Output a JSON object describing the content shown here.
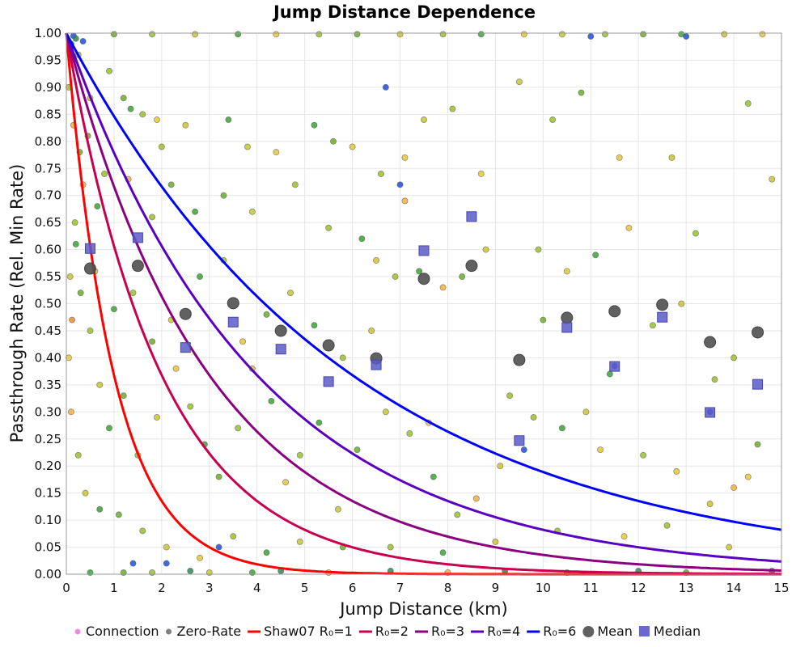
{
  "chart_data": {
    "type": "scatter",
    "title": "Jump Distance Dependence",
    "xlabel": "Jump Distance (km)",
    "ylabel": "Passthrough Rate (Rel. Min Rate)",
    "xlim": [
      0,
      15
    ],
    "ylim": [
      0,
      1
    ],
    "grid": true,
    "x_ticks": [
      "0",
      "1",
      "2",
      "3",
      "4",
      "5",
      "6",
      "7",
      "8",
      "9",
      "10",
      "11",
      "12",
      "13",
      "14",
      "15"
    ],
    "y_ticks": [
      "0.00",
      "0.05",
      "0.10",
      "0.15",
      "0.20",
      "0.25",
      "0.30",
      "0.35",
      "0.40",
      "0.45",
      "0.50",
      "0.55",
      "0.60",
      "0.65",
      "0.70",
      "0.75",
      "0.80",
      "0.85",
      "0.90",
      "0.95",
      "1.00"
    ],
    "legend_position": "bottom",
    "legend": [
      {
        "label": "Connection",
        "kind": "dot",
        "color": "#f08ae0"
      },
      {
        "label": "Zero-Rate",
        "kind": "dot",
        "color": "#808080"
      },
      {
        "label": "Shaw07 R₀=1",
        "kind": "line",
        "color": "#ff0000"
      },
      {
        "label": "R₀=2",
        "kind": "line",
        "color": "#c8004e"
      },
      {
        "label": "R₀=3",
        "kind": "line",
        "color": "#8a0080"
      },
      {
        "label": "R₀=4",
        "kind": "line",
        "color": "#5a00c0"
      },
      {
        "label": "R₀=6",
        "kind": "line",
        "color": "#0000ff"
      },
      {
        "label": "Mean",
        "kind": "circle",
        "color": "#606060"
      },
      {
        "label": "Median",
        "kind": "square",
        "color": "#6a6acd"
      }
    ],
    "curves": [
      {
        "name": "Shaw07 R0=1",
        "formula": "exp(-x/1)",
        "R0": 1,
        "color": "#ff0000"
      },
      {
        "name": "R0=2",
        "formula": "exp(-x/2)",
        "R0": 2,
        "color": "#c8004e"
      },
      {
        "name": "R0=3",
        "formula": "exp(-x/3)",
        "R0": 3,
        "color": "#8a0080"
      },
      {
        "name": "R0=4",
        "formula": "exp(-x/4)",
        "R0": 4,
        "color": "#5a00c0"
      },
      {
        "name": "R0=6",
        "formula": "exp(-x/6)",
        "R0": 6,
        "color": "#0000ff"
      }
    ],
    "mean": {
      "x": [
        0.5,
        1.5,
        2.5,
        3.5,
        4.5,
        5.5,
        6.5,
        7.5,
        8.5,
        9.5,
        10.5,
        11.5,
        12.5,
        13.5,
        14.5
      ],
      "y": [
        0.565,
        0.57,
        0.481,
        0.501,
        0.45,
        0.423,
        0.399,
        0.546,
        0.57,
        0.396,
        0.474,
        0.486,
        0.498,
        0.429,
        0.447
      ]
    },
    "median": {
      "x": [
        0.5,
        1.5,
        2.5,
        3.5,
        4.5,
        5.5,
        6.5,
        7.5,
        8.5,
        9.5,
        10.5,
        11.5,
        12.5,
        13.5,
        14.5
      ],
      "y": [
        0.602,
        0.622,
        0.419,
        0.466,
        0.416,
        0.356,
        0.387,
        0.598,
        0.661,
        0.247,
        0.456,
        0.384,
        0.475,
        0.299,
        0.351
      ]
    },
    "scatter_colors": [
      "#1f4fd8",
      "#2e8b57",
      "#3aa335",
      "#6aab2a",
      "#9bbf2a",
      "#c9c42f",
      "#e8c53a",
      "#f0b13a",
      "#ee8a2e"
    ],
    "scatter_points": [
      [
        0.1,
        0.98,
        0
      ],
      [
        0.15,
        0.995,
        0
      ],
      [
        0.2,
        0.99,
        1
      ],
      [
        0.35,
        0.985,
        0
      ],
      [
        0.25,
        0.96,
        4
      ],
      [
        0.9,
        0.93,
        4
      ],
      [
        1.2,
        0.88,
        3
      ],
      [
        1.35,
        0.86,
        2
      ],
      [
        0.5,
        0.88,
        5
      ],
      [
        1.6,
        0.85,
        4
      ],
      [
        0.45,
        0.81,
        3
      ],
      [
        1.9,
        0.84,
        6
      ],
      [
        2.5,
        0.83,
        5
      ],
      [
        3.4,
        0.84,
        2
      ],
      [
        3.8,
        0.79,
        5
      ],
      [
        2.2,
        0.72,
        3
      ],
      [
        2.0,
        0.79,
        4
      ],
      [
        0.8,
        0.74,
        4
      ],
      [
        1.3,
        0.73,
        7
      ],
      [
        0.65,
        0.68,
        2
      ],
      [
        1.8,
        0.66,
        4
      ],
      [
        2.7,
        0.67,
        2
      ],
      [
        3.3,
        0.7,
        3
      ],
      [
        3.9,
        0.67,
        5
      ],
      [
        4.4,
        0.78,
        6
      ],
      [
        4.8,
        0.72,
        4
      ],
      [
        5.2,
        0.83,
        2
      ],
      [
        5.6,
        0.8,
        3
      ],
      [
        6.0,
        0.79,
        6
      ],
      [
        6.6,
        0.74,
        4
      ],
      [
        7.1,
        0.77,
        6
      ],
      [
        7.5,
        0.84,
        5
      ],
      [
        8.1,
        0.86,
        4
      ],
      [
        8.7,
        0.74,
        6
      ],
      [
        9.5,
        0.91,
        5
      ],
      [
        10.2,
        0.84,
        4
      ],
      [
        10.8,
        0.89,
        3
      ],
      [
        11.6,
        0.77,
        6
      ],
      [
        12.7,
        0.77,
        5
      ],
      [
        13.2,
        0.63,
        4
      ],
      [
        14.3,
        0.87,
        4
      ],
      [
        14.8,
        0.73,
        5
      ],
      [
        6.7,
        0.9,
        0
      ],
      [
        7.0,
        0.72,
        0
      ],
      [
        7.1,
        0.69,
        7
      ],
      [
        5.5,
        0.64,
        4
      ],
      [
        6.2,
        0.62,
        2
      ],
      [
        6.5,
        0.58,
        5
      ],
      [
        6.9,
        0.55,
        4
      ],
      [
        7.4,
        0.56,
        2
      ],
      [
        7.9,
        0.53,
        7
      ],
      [
        8.3,
        0.55,
        3
      ],
      [
        8.8,
        0.6,
        5
      ],
      [
        9.9,
        0.6,
        4
      ],
      [
        10.5,
        0.56,
        6
      ],
      [
        11.1,
        0.59,
        2
      ],
      [
        11.8,
        0.64,
        6
      ],
      [
        12.3,
        0.46,
        4
      ],
      [
        12.9,
        0.5,
        5
      ],
      [
        14.0,
        0.4,
        4
      ],
      [
        13.6,
        0.36,
        4
      ],
      [
        14.5,
        0.24,
        3
      ],
      [
        14.3,
        0.18,
        6
      ],
      [
        14.0,
        0.16,
        7
      ],
      [
        13.5,
        0.13,
        5
      ],
      [
        12.8,
        0.19,
        6
      ],
      [
        12.1,
        0.22,
        4
      ],
      [
        11.2,
        0.23,
        6
      ],
      [
        10.4,
        0.27,
        2
      ],
      [
        9.8,
        0.29,
        4
      ],
      [
        9.1,
        0.2,
        5
      ],
      [
        8.6,
        0.14,
        7
      ],
      [
        8.2,
        0.11,
        4
      ],
      [
        7.7,
        0.18,
        2
      ],
      [
        7.2,
        0.26,
        4
      ],
      [
        6.7,
        0.3,
        5
      ],
      [
        6.1,
        0.23,
        3
      ],
      [
        5.7,
        0.12,
        5
      ],
      [
        5.3,
        0.28,
        2
      ],
      [
        4.9,
        0.22,
        4
      ],
      [
        4.6,
        0.17,
        6
      ],
      [
        4.3,
        0.32,
        2
      ],
      [
        3.9,
        0.38,
        5
      ],
      [
        3.6,
        0.27,
        4
      ],
      [
        3.2,
        0.18,
        3
      ],
      [
        2.9,
        0.24,
        2
      ],
      [
        2.6,
        0.31,
        4
      ],
      [
        2.3,
        0.38,
        6
      ],
      [
        1.9,
        0.29,
        5
      ],
      [
        1.5,
        0.22,
        4
      ],
      [
        1.2,
        0.33,
        3
      ],
      [
        0.9,
        0.27,
        2
      ],
      [
        0.7,
        0.35,
        5
      ],
      [
        0.5,
        0.45,
        4
      ],
      [
        0.3,
        0.52,
        3
      ],
      [
        0.2,
        0.61,
        2
      ],
      [
        0.35,
        0.72,
        6
      ],
      [
        0.15,
        0.83,
        7
      ],
      [
        0.05,
        0.9,
        4
      ],
      [
        0.6,
        0.56,
        5
      ],
      [
        1.0,
        0.49,
        2
      ],
      [
        1.4,
        0.52,
        4
      ],
      [
        1.8,
        0.43,
        3
      ],
      [
        2.2,
        0.47,
        5
      ],
      [
        2.8,
        0.55,
        2
      ],
      [
        3.3,
        0.58,
        4
      ],
      [
        3.7,
        0.43,
        6
      ],
      [
        4.2,
        0.48,
        3
      ],
      [
        4.7,
        0.52,
        5
      ],
      [
        5.2,
        0.46,
        2
      ],
      [
        5.8,
        0.4,
        4
      ],
      [
        6.4,
        0.45,
        5
      ],
      [
        7.6,
        0.28,
        6
      ],
      [
        9.3,
        0.33,
        4
      ],
      [
        10.0,
        0.47,
        3
      ],
      [
        10.9,
        0.3,
        5
      ],
      [
        11.4,
        0.37,
        2
      ],
      [
        12.6,
        0.09,
        4
      ],
      [
        13.9,
        0.05,
        5
      ],
      [
        11.7,
        0.07,
        6
      ],
      [
        10.3,
        0.08,
        4
      ],
      [
        9.0,
        0.06,
        5
      ],
      [
        7.9,
        0.04,
        2
      ],
      [
        6.8,
        0.05,
        4
      ],
      [
        5.8,
        0.05,
        3
      ],
      [
        4.9,
        0.06,
        5
      ],
      [
        4.2,
        0.04,
        2
      ],
      [
        3.5,
        0.07,
        4
      ],
      [
        2.8,
        0.03,
        6
      ],
      [
        2.1,
        0.05,
        5
      ],
      [
        1.6,
        0.08,
        4
      ],
      [
        1.1,
        0.11,
        3
      ],
      [
        0.7,
        0.12,
        2
      ],
      [
        0.4,
        0.15,
        5
      ],
      [
        0.25,
        0.22,
        4
      ],
      [
        0.1,
        0.3,
        7
      ],
      [
        0.05,
        0.4,
        6
      ],
      [
        0.12,
        0.47,
        8
      ],
      [
        0.08,
        0.55,
        5
      ],
      [
        0.18,
        0.65,
        4
      ],
      [
        0.28,
        0.78,
        3
      ],
      [
        2.1,
        0.02,
        0
      ],
      [
        1.4,
        0.02,
        0
      ],
      [
        3.2,
        0.05,
        0
      ],
      [
        9.6,
        0.23,
        0
      ],
      [
        11.5,
        0.385,
        0
      ],
      [
        13.5,
        0.3,
        0
      ],
      [
        2.6,
        0.006,
        1
      ],
      [
        4.5,
        0.006,
        1
      ],
      [
        6.8,
        0.006,
        1
      ],
      [
        9.2,
        0.006,
        1
      ],
      [
        12.0,
        0.006,
        1
      ],
      [
        14.8,
        0.006,
        1
      ],
      [
        0.5,
        0.003,
        2
      ],
      [
        1.2,
        0.003,
        3
      ],
      [
        1.8,
        0.003,
        4
      ],
      [
        3.0,
        0.003,
        5
      ],
      [
        3.9,
        0.003,
        2
      ],
      [
        5.5,
        0.003,
        6
      ],
      [
        8.0,
        0.003,
        7
      ],
      [
        10.5,
        0.003,
        4
      ],
      [
        13.0,
        0.003,
        3
      ],
      [
        1.0,
        0.998,
        3
      ],
      [
        1.8,
        0.998,
        4
      ],
      [
        2.7,
        0.998,
        5
      ],
      [
        3.6,
        0.998,
        2
      ],
      [
        4.4,
        0.998,
        6
      ],
      [
        5.3,
        0.998,
        4
      ],
      [
        6.1,
        0.998,
        3
      ],
      [
        7.0,
        0.998,
        5
      ],
      [
        7.9,
        0.998,
        4
      ],
      [
        8.7,
        0.998,
        2
      ],
      [
        9.6,
        0.998,
        6
      ],
      [
        10.4,
        0.998,
        5
      ],
      [
        11.3,
        0.998,
        4
      ],
      [
        12.1,
        0.998,
        3
      ],
      [
        12.9,
        0.998,
        2
      ],
      [
        13.8,
        0.998,
        5
      ],
      [
        14.6,
        0.998,
        6
      ],
      [
        11.0,
        0.994,
        0
      ],
      [
        13.0,
        0.994,
        0
      ]
    ]
  }
}
